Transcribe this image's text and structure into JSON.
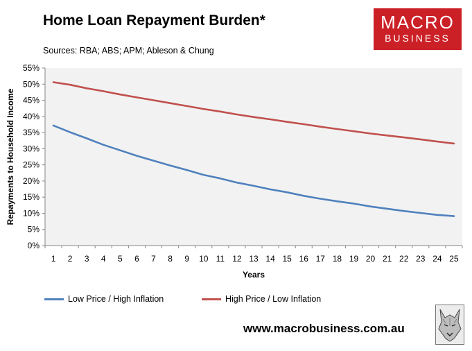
{
  "header": {
    "title": "Home Loan Repayment Burden*",
    "sources": "Sources: RBA; ABS; APM; Ableson & Chung"
  },
  "logo": {
    "line1": "MACRO",
    "line2": "BUSINESS",
    "color": "#cc2027"
  },
  "footer": {
    "website": "www.macrobusiness.com.au"
  },
  "chart_data": {
    "type": "line",
    "title": "Home Loan Repayment Burden*",
    "xlabel": "Years",
    "ylabel": "Repayments to Household Income",
    "x": [
      1,
      2,
      3,
      4,
      5,
      6,
      7,
      8,
      9,
      10,
      11,
      12,
      13,
      14,
      15,
      16,
      17,
      18,
      19,
      20,
      21,
      22,
      23,
      24,
      25
    ],
    "y_ticks": [
      "0%",
      "5%",
      "10%",
      "15%",
      "20%",
      "25%",
      "30%",
      "35%",
      "40%",
      "45%",
      "50%",
      "55%"
    ],
    "ylim": [
      0,
      55
    ],
    "grid": false,
    "plot_background": "#f2f2f2",
    "legend_position": "bottom",
    "series": [
      {
        "name": "Low Price / High Inflation",
        "color": "#4f81bd",
        "values": [
          37.2,
          35.1,
          33.2,
          31.2,
          29.5,
          27.8,
          26.3,
          24.8,
          23.4,
          21.9,
          20.8,
          19.5,
          18.5,
          17.4,
          16.5,
          15.4,
          14.5,
          13.7,
          13.0,
          12.1,
          11.4,
          10.7,
          10.1,
          9.5,
          9.1
        ]
      },
      {
        "name": "High Price / Low Inflation",
        "color": "#c0504d",
        "values": [
          50.6,
          49.8,
          48.7,
          47.8,
          46.8,
          45.9,
          45.0,
          44.1,
          43.2,
          42.3,
          41.5,
          40.6,
          39.8,
          39.1,
          38.3,
          37.6,
          36.8,
          36.1,
          35.4,
          34.7,
          34.1,
          33.5,
          32.9,
          32.2,
          31.6
        ]
      }
    ]
  }
}
